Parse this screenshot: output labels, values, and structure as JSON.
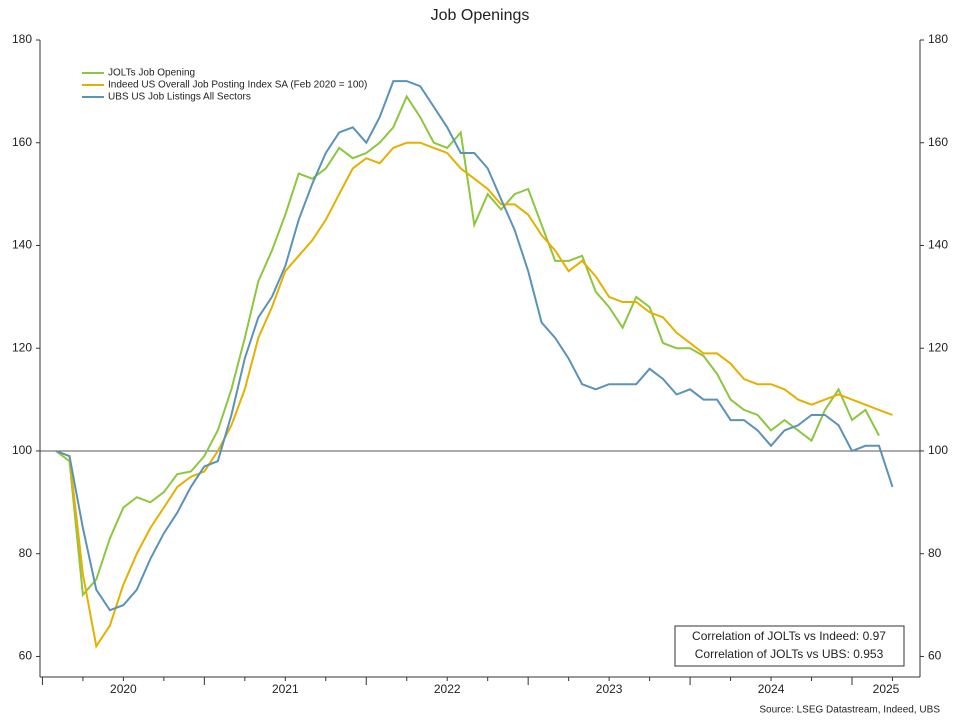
{
  "chart_data": {
    "type": "line",
    "title": "Job Openings",
    "x": [
      2020.083,
      2020.167,
      2020.25,
      2020.333,
      2020.417,
      2020.5,
      2020.583,
      2020.667,
      2020.75,
      2020.833,
      2020.917,
      2021.0,
      2021.083,
      2021.167,
      2021.25,
      2021.333,
      2021.417,
      2021.5,
      2021.583,
      2021.667,
      2021.75,
      2021.833,
      2021.917,
      2022.0,
      2022.083,
      2022.167,
      2022.25,
      2022.333,
      2022.417,
      2022.5,
      2022.583,
      2022.667,
      2022.75,
      2022.833,
      2022.917,
      2023.0,
      2023.083,
      2023.167,
      2023.25,
      2023.333,
      2023.417,
      2023.5,
      2023.583,
      2023.667,
      2023.75,
      2023.833,
      2023.917,
      2024.0,
      2024.083,
      2024.167,
      2024.25,
      2024.333,
      2024.417,
      2024.5,
      2024.583,
      2024.667,
      2024.75,
      2024.833,
      2024.917,
      2025.0,
      2025.083,
      2025.167,
      2025.25
    ],
    "series": [
      {
        "name": "JOLTs Job Opening",
        "color": "#8dc63f",
        "values": [
          100,
          98,
          72,
          75,
          83,
          89,
          91,
          90,
          92,
          95.5,
          96,
          99,
          104,
          112,
          122,
          133,
          139,
          146,
          154,
          153,
          155,
          159,
          157,
          158,
          160,
          163,
          169,
          165,
          160,
          159,
          162,
          144,
          150,
          147,
          150,
          151,
          144,
          137,
          137,
          138,
          131,
          128,
          124,
          130,
          128,
          121,
          120,
          120,
          118.5,
          115,
          110,
          108,
          107,
          104,
          106,
          104,
          102,
          108,
          112,
          106,
          108,
          103,
          null
        ]
      },
      {
        "name": "Indeed US Overall Job Posting Index SA (Feb 2020 = 100)",
        "color": "#e6b000",
        "values": [
          100,
          99,
          76,
          62,
          66,
          74,
          80,
          85,
          89,
          93,
          95,
          96,
          100,
          105,
          112,
          122,
          128,
          135,
          138,
          141,
          145,
          150,
          155,
          157,
          156,
          159,
          160,
          160,
          159,
          158,
          155,
          153,
          151,
          148,
          148,
          146,
          142,
          139,
          135,
          137,
          134,
          130,
          129,
          129,
          127,
          126,
          123,
          121,
          119,
          119,
          117,
          114,
          113,
          113,
          112,
          110,
          109,
          110,
          111,
          110,
          109,
          108,
          107
        ]
      },
      {
        "name": "UBS US Job Listings All Sectors",
        "color": "#5b93b8",
        "values": [
          100,
          99,
          85,
          73,
          69,
          70,
          73,
          79,
          84,
          88,
          93,
          97,
          98,
          107,
          118,
          126,
          130,
          136,
          145,
          152,
          158,
          162,
          163,
          160,
          165,
          172,
          172,
          171,
          167,
          163,
          158,
          158,
          155,
          149,
          143,
          135,
          125,
          122,
          118,
          113,
          112,
          113,
          113,
          113,
          116,
          114,
          111,
          112,
          110,
          110,
          106,
          106,
          104,
          101,
          104,
          105,
          107,
          107,
          105,
          100,
          101,
          101,
          93
        ]
      }
    ],
    "xlim": [
      2019.985,
      2025.42
    ],
    "xticks": [
      2020,
      2021,
      2022,
      2023,
      2024,
      2025
    ],
    "ylim": [
      56,
      180
    ],
    "yticks": [
      60,
      80,
      100,
      120,
      140,
      160,
      180
    ],
    "reference_line": 100,
    "annotations": [
      "Correlation of JOLTs vs Indeed: 0.97",
      "Correlation of JOLTs vs UBS: 0.953"
    ],
    "source": "Source: LSEG Datastream, Indeed, UBS"
  }
}
